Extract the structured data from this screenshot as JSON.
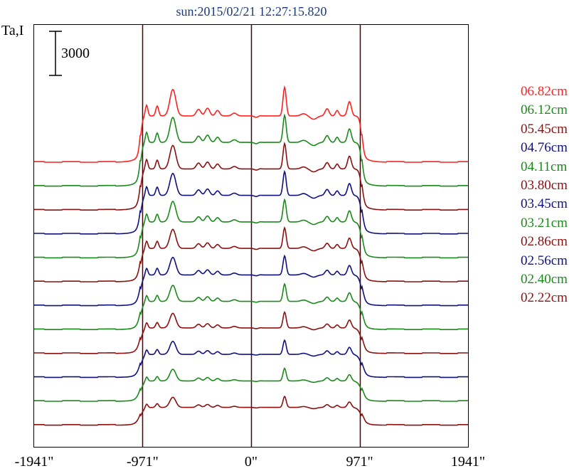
{
  "chart_data": {
    "type": "line",
    "title": "sun:2015/02/21 12:27:15.820",
    "ylabel": "Ta,I",
    "scale_bar_label": "3000",
    "scale_bar_value": 3000,
    "xlim": [
      -1941,
      1941
    ],
    "x_ticks": [
      {
        "value": -1941,
        "label": "-1941\""
      },
      {
        "value": -971,
        "label": "-971\""
      },
      {
        "value": 0,
        "label": "0\""
      },
      {
        "value": 971,
        "label": "971\""
      },
      {
        "value": 1941,
        "label": "1941\""
      }
    ],
    "vertical_lines": [
      -971,
      0,
      971
    ],
    "series": [
      {
        "name": "06.82cm",
        "color": "#ff2020"
      },
      {
        "name": "06.12cm",
        "color": "#1a8a1a"
      },
      {
        "name": "05.45cm",
        "color": "#8b1010"
      },
      {
        "name": "04.76cm",
        "color": "#10107f"
      },
      {
        "name": "04.11cm",
        "color": "#1a8a1a"
      },
      {
        "name": "03.80cm",
        "color": "#8b1010"
      },
      {
        "name": "03.45cm",
        "color": "#10107f"
      },
      {
        "name": "03.21cm",
        "color": "#1a8a1a"
      },
      {
        "name": "02.86cm",
        "color": "#8b1010"
      },
      {
        "name": "02.56cm",
        "color": "#10107f"
      },
      {
        "name": "02.40cm",
        "color": "#1a8a1a"
      },
      {
        "name": "02.22cm",
        "color": "#8b1010"
      }
    ]
  }
}
